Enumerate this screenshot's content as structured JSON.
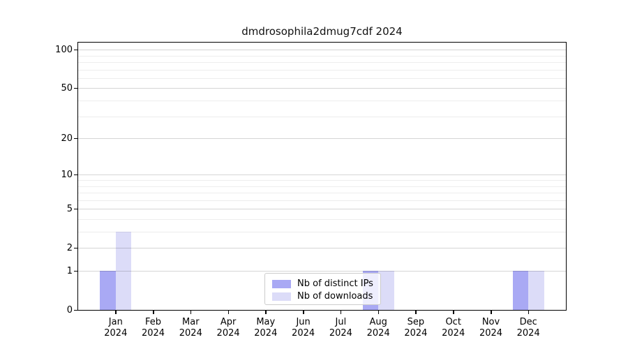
{
  "chart_data": {
    "type": "bar",
    "title": "dmdrosophila2dmug7cdf 2024",
    "categories": [
      "Jan",
      "Feb",
      "Mar",
      "Apr",
      "May",
      "Jun",
      "Jul",
      "Aug",
      "Sep",
      "Oct",
      "Nov",
      "Dec"
    ],
    "category_year": "2024",
    "series": [
      {
        "name": "Nb of distinct IPs",
        "color": "#a9a9f4",
        "values": [
          1,
          0,
          0,
          0,
          0,
          0,
          0,
          1,
          0,
          0,
          0,
          1
        ]
      },
      {
        "name": "Nb of downloads",
        "color": "#dcdcf8",
        "values": [
          3,
          0,
          0,
          0,
          0,
          0,
          0,
          1,
          0,
          0,
          0,
          1
        ]
      }
    ],
    "xlabel": "",
    "ylabel": "",
    "yscale": "log10(value+1)",
    "ylim": [
      0,
      113.6
    ],
    "ytick_labels": [
      0,
      1,
      2,
      5,
      10,
      20,
      50,
      100
    ],
    "minor_gridline_values": [
      3,
      4,
      6,
      7,
      8,
      9,
      30,
      40,
      60,
      70,
      80,
      90
    ],
    "grid": "horizontal",
    "legend_position": "lower center",
    "frame_color": "#000000",
    "background_color": "#ffffff"
  }
}
